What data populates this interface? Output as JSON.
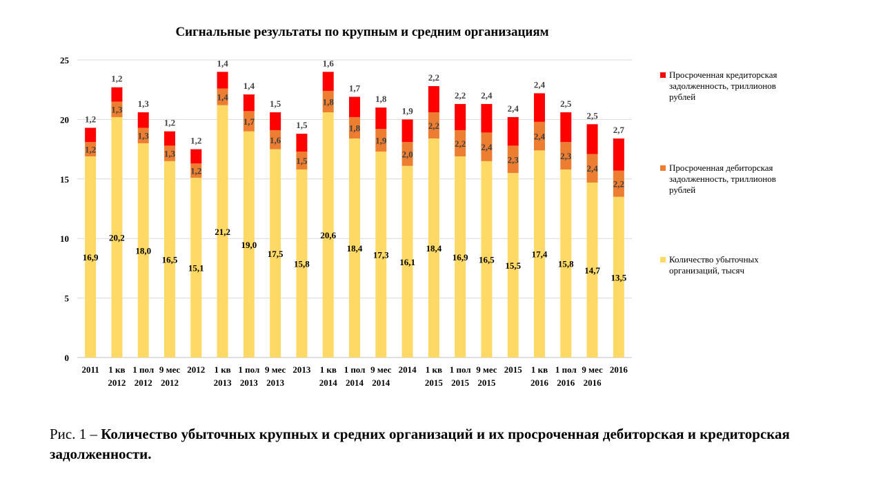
{
  "chart_data": {
    "type": "bar",
    "stacked": true,
    "title": "Сигнальные  результаты  по крупным и средним организациям",
    "categories": [
      [
        "2011"
      ],
      [
        "1 кв",
        "2012"
      ],
      [
        "1 пол",
        "2012"
      ],
      [
        "9 мес",
        "2012"
      ],
      [
        "2012"
      ],
      [
        "1 кв",
        "2013"
      ],
      [
        "1 пол",
        "2013"
      ],
      [
        "9 мес",
        "2013"
      ],
      [
        "2013"
      ],
      [
        "1 кв",
        "2014"
      ],
      [
        "1 пол",
        "2014"
      ],
      [
        "9 мес",
        "2014"
      ],
      [
        "2014"
      ],
      [
        "1 кв",
        "2015"
      ],
      [
        "1 пол",
        "2015"
      ],
      [
        "9 мес",
        "2015"
      ],
      [
        "2015"
      ],
      [
        "1 кв",
        "2016"
      ],
      [
        "1 пол",
        "2016"
      ],
      [
        "9 мес",
        "2016"
      ],
      [
        "2016"
      ]
    ],
    "series": [
      {
        "name": "Количество убыточных организаций,  тысяч",
        "color": "#FFD966",
        "values": [
          16.9,
          20.2,
          18.0,
          16.5,
          15.1,
          21.2,
          19.0,
          17.5,
          15.8,
          20.6,
          18.4,
          17.3,
          16.1,
          18.4,
          16.9,
          16.5,
          15.5,
          17.4,
          15.8,
          14.7,
          13.5
        ],
        "labels": [
          "16,9",
          "20,2",
          "18,0",
          "16,5",
          "15,1",
          "21,2",
          "19,0",
          "17,5",
          "15,8",
          "20,6",
          "18,4",
          "17,3",
          "16,1",
          "18,4",
          "16,9",
          "16,5",
          "15,5",
          "17,4",
          "15,8",
          "14,7",
          "13,5"
        ]
      },
      {
        "name": "Просроченная дебиторская задолженность,  триллионов  рублей",
        "color": "#ED7D31",
        "values": [
          1.2,
          1.3,
          1.3,
          1.3,
          1.2,
          1.4,
          1.7,
          1.6,
          1.5,
          1.8,
          1.8,
          1.9,
          2.0,
          2.2,
          2.2,
          2.4,
          2.3,
          2.4,
          2.3,
          2.4,
          2.2
        ],
        "labels": [
          "1,2",
          "1,3",
          "1,3",
          "1,3",
          "1,2",
          "1,4",
          "1,7",
          "1,6",
          "1,5",
          "1,8",
          "1,8",
          "1,9",
          "2,0",
          "2,2",
          "2,2",
          "2,4",
          "2,3",
          "2,4",
          "2,3",
          "2,4",
          "2,2"
        ]
      },
      {
        "name": "Просроченная кредиторская задолженность,  триллионов  рублей",
        "color": "#FF0000",
        "values": [
          1.2,
          1.2,
          1.3,
          1.2,
          1.2,
          1.4,
          1.4,
          1.5,
          1.5,
          1.6,
          1.7,
          1.8,
          1.9,
          2.2,
          2.2,
          2.4,
          2.4,
          2.4,
          2.5,
          2.5,
          2.7
        ],
        "labels": [
          "1,2",
          "1,2",
          "1,3",
          "1,2",
          "1,2",
          "1,4",
          "1,4",
          "1,5",
          "1,5",
          "1,6",
          "1,7",
          "1,8",
          "1,9",
          "2,2",
          "2,2",
          "2,4",
          "2,4",
          "2,4",
          "2,5",
          "2,5",
          "2,7"
        ]
      }
    ],
    "ylim": [
      0,
      25
    ],
    "yticks": [
      "0",
      "5",
      "10",
      "15",
      "20",
      "25"
    ],
    "grid": true,
    "legend_position": "right"
  },
  "caption": {
    "prefix": "Рис. 1 – ",
    "bold": "Количество убыточных крупных и средних организаций и их просроченная дебиторская и кредиторская задолженности."
  }
}
